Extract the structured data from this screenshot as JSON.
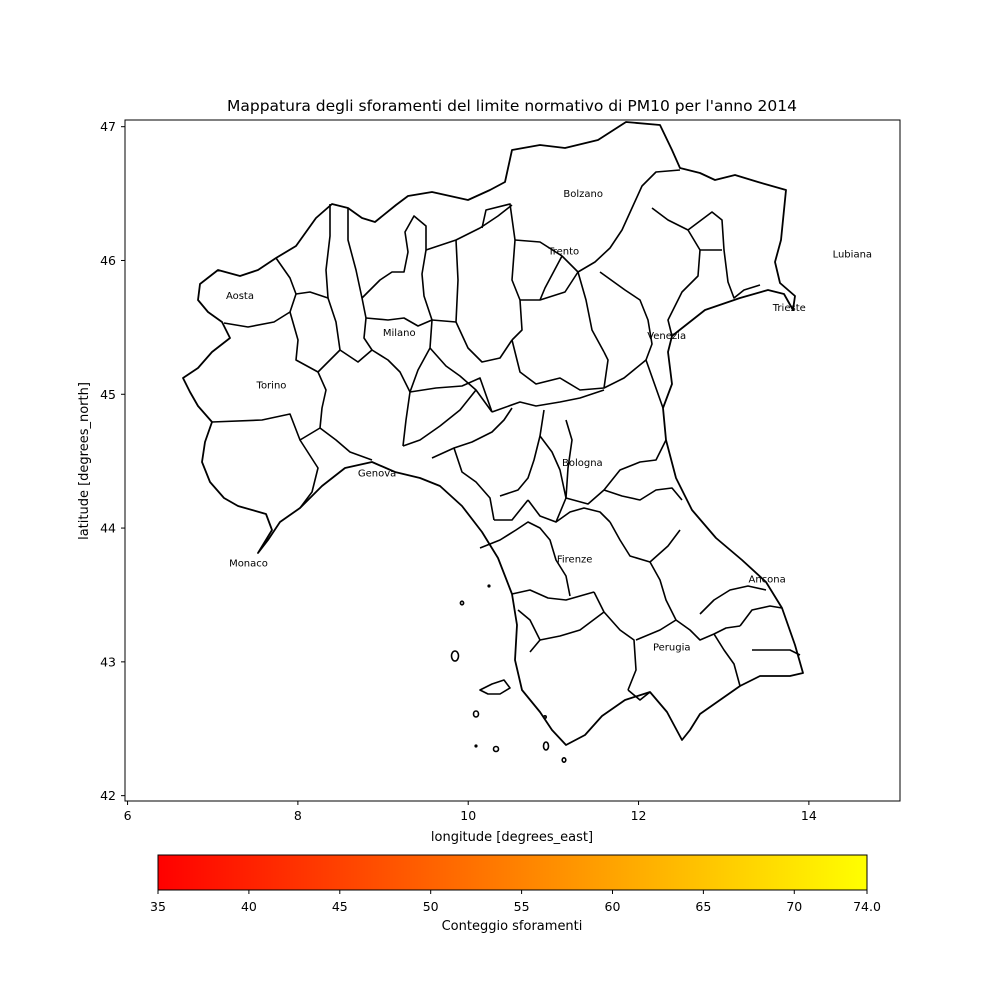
{
  "chart_data": {
    "type": "map",
    "title": "Mappatura degli sforamenti del limite normativo di PM10 per l'anno 2014",
    "xlabel": "longitude [degrees_east]",
    "ylabel": "latitude [degrees_north]",
    "xlim": [
      5.97,
      15.07
    ],
    "ylim": [
      41.96,
      47.05
    ],
    "x_ticks": [
      6,
      8,
      10,
      12,
      14
    ],
    "y_ticks": [
      42,
      43,
      44,
      45,
      46,
      47
    ],
    "grid": false,
    "cities": [
      {
        "name": "Bolzano",
        "lon": 11.35,
        "lat": 46.5
      },
      {
        "name": "Trento",
        "lon": 11.12,
        "lat": 46.07
      },
      {
        "name": "Lubiana",
        "lon": 14.51,
        "lat": 46.05
      },
      {
        "name": "Aosta",
        "lon": 7.32,
        "lat": 45.74
      },
      {
        "name": "Trieste",
        "lon": 13.77,
        "lat": 45.65
      },
      {
        "name": "Milano",
        "lon": 9.19,
        "lat": 45.46
      },
      {
        "name": "Venezia",
        "lon": 12.33,
        "lat": 45.44
      },
      {
        "name": "Torino",
        "lon": 7.69,
        "lat": 45.07
      },
      {
        "name": "Bologna",
        "lon": 11.34,
        "lat": 44.49
      },
      {
        "name": "Genova",
        "lon": 8.93,
        "lat": 44.41
      },
      {
        "name": "Monaco",
        "lon": 7.42,
        "lat": 43.74
      },
      {
        "name": "Firenze",
        "lon": 11.25,
        "lat": 43.77
      },
      {
        "name": "Ancona",
        "lon": 13.51,
        "lat": 43.62
      },
      {
        "name": "Perugia",
        "lon": 12.39,
        "lat": 43.11
      }
    ],
    "colorbar": {
      "label": "Conteggio sforamenti",
      "min": 35,
      "max": 74.0,
      "ticks": [
        "35",
        "40",
        "45",
        "50",
        "55",
        "60",
        "65",
        "70",
        "74.0"
      ],
      "tick_values": [
        35,
        40,
        45,
        50,
        55,
        60,
        65,
        70,
        74
      ],
      "colormap": "autumn",
      "color_low": "#ff0000",
      "color_high": "#ffff00"
    }
  }
}
